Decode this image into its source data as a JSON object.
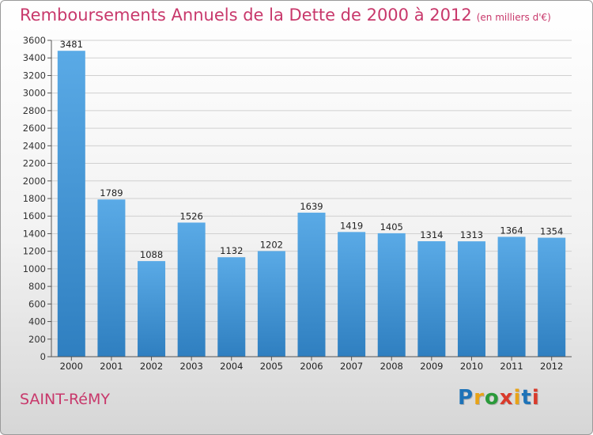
{
  "header": {
    "title": "Remboursements Annuels de la Dette de 2000 à 2012",
    "unit": "(en milliers d'€)"
  },
  "footer": {
    "city": "SAINT-RéMY",
    "logo": "Proxiti",
    "logo_colors": [
      "#1e73b8",
      "#e8a317",
      "#2a9a3a",
      "#d93a2b",
      "#e8a317",
      "#1e73b8",
      "#d93a2b"
    ]
  },
  "colors": {
    "bar_top": "#5aaae6",
    "bar_bottom": "#2f7fc0",
    "title": "#c8386b",
    "grid": "#d0d0d0"
  },
  "chart_data": {
    "type": "bar",
    "title": "Remboursements Annuels de la Dette de 2000 à 2012",
    "xlabel": "",
    "ylabel": "",
    "categories": [
      "2000",
      "2001",
      "2002",
      "2003",
      "2004",
      "2005",
      "2006",
      "2007",
      "2008",
      "2009",
      "2010",
      "2011",
      "2012"
    ],
    "values": [
      3481,
      1789,
      1088,
      1526,
      1132,
      1202,
      1639,
      1419,
      1405,
      1314,
      1313,
      1364,
      1354
    ],
    "ylim": [
      0,
      3600
    ],
    "yticks": [
      0,
      200,
      400,
      600,
      800,
      1000,
      1200,
      1400,
      1600,
      1800,
      2000,
      2200,
      2400,
      2600,
      2800,
      3000,
      3200,
      3400,
      3600
    ],
    "grid": true
  }
}
